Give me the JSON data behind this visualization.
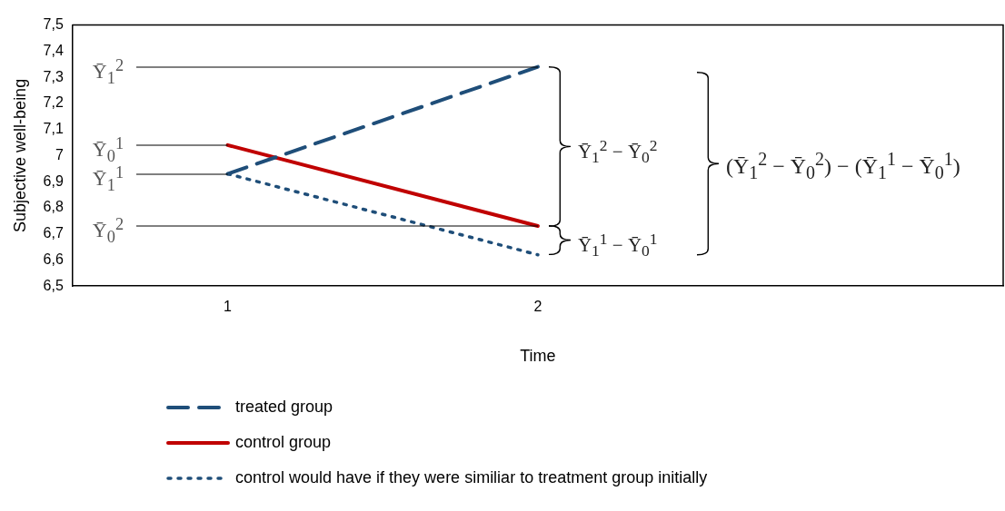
{
  "chart_data": {
    "type": "line",
    "xlabel": "Time",
    "ylabel": "Subjective well-being",
    "categories": [
      "1",
      "2",
      null
    ],
    "series": [
      {
        "name": "treated group",
        "color": "#1f4e79",
        "line_style": "dashed",
        "values": [
          6.93,
          7.34,
          null
        ]
      },
      {
        "name": "control group",
        "color": "#c00000",
        "line_style": "solid",
        "values": [
          7.04,
          6.73,
          null
        ]
      },
      {
        "name": "control would have if they were similiar to treatment group initially",
        "color": "#1f4e79",
        "line_style": "dotted",
        "values": [
          6.93,
          6.62,
          null
        ]
      }
    ],
    "ylim": [
      6.5,
      7.5
    ],
    "yticks": [
      {
        "value": 6.5,
        "label": "6,5"
      },
      {
        "value": 6.6,
        "label": "6,6"
      },
      {
        "value": 6.7,
        "label": "6,7"
      },
      {
        "value": 6.8,
        "label": "6,8"
      },
      {
        "value": 6.9,
        "label": "6,9"
      },
      7,
      {
        "value": 7.1,
        "label": "7,1"
      },
      {
        "value": 7.2,
        "label": "7,2"
      },
      {
        "value": 7.3,
        "label": "7,3"
      },
      {
        "value": 7.4,
        "label": "7,4"
      },
      {
        "value": 7.5,
        "label": "7,5"
      }
    ],
    "grid": false,
    "legend": "bottom",
    "marker": "none",
    "annotations": [
      {
        "text": "Ȳ$_{1}$$^{2}$",
        "x": "2",
        "y": 7.34
      },
      {
        "text": "Ȳ$_{0}$$^{1}$",
        "x": "1",
        "y": 7.04
      },
      {
        "text": "Ȳ$_{1}$$^{1}$",
        "x": "1",
        "y": 6.93
      },
      {
        "text": "Ȳ$_{0}$$^{2}$",
        "x": "2",
        "y": 6.73
      },
      "Ȳ$_{1}$$^{2}$ − Ȳ$_{0}$$^{2}$",
      "Ȳ$_{1}$$^{1}$ − Ȳ$_{0}$$^{1}$",
      "(Ȳ$_{1}$$^{2}$ − Ȳ$_{0}$$^{2}$) − (Ȳ$_{1}$$^{1}$ − Ȳ$_{0}$$^{1}$)"
    ]
  }
}
